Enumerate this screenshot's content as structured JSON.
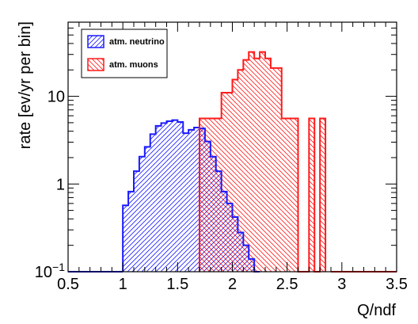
{
  "chart_data": {
    "type": "histogram",
    "xlabel": "Q/ndf",
    "ylabel": "rate [ev/yr per bin]",
    "xlim": [
      0.5,
      3.5
    ],
    "ylim": [
      0.1,
      70
    ],
    "y_scale": "log",
    "x_ticks": [
      "0.5",
      "1",
      "1.5",
      "2",
      "2.5",
      "3",
      "3.5"
    ],
    "y_ticks": [
      {
        "value": 0.1,
        "base": "10",
        "exp": "−1"
      },
      {
        "value": 1,
        "label": "1"
      },
      {
        "value": 10,
        "label": "10"
      }
    ],
    "bin_width": 0.05,
    "legend_position": "top-left",
    "series": [
      {
        "name": "atm. neutrino",
        "color": "#1a1aff",
        "hatch": "right-diagonal",
        "x_start": 1.0,
        "values": [
          0.57,
          0.82,
          1.4,
          2.05,
          2.65,
          3.7,
          4.6,
          4.95,
          5.2,
          5.35,
          5.1,
          3.8,
          4.15,
          4.4,
          4.3,
          3.05,
          2.05,
          1.4,
          0.82,
          0.6,
          0.42,
          0.28,
          0.2,
          0.14,
          0.1
        ]
      },
      {
        "name": "atm. muons",
        "color": "#ff1a1a",
        "hatch": "left-diagonal",
        "x_start": 1.7,
        "values": [
          5.6,
          5.6,
          5.6,
          5.6,
          11,
          11,
          15.5,
          20,
          26,
          32,
          27,
          32,
          27,
          21,
          21,
          5.6,
          5.6,
          5.6,
          0.1,
          0,
          5.6,
          0,
          5.6
        ]
      }
    ]
  }
}
